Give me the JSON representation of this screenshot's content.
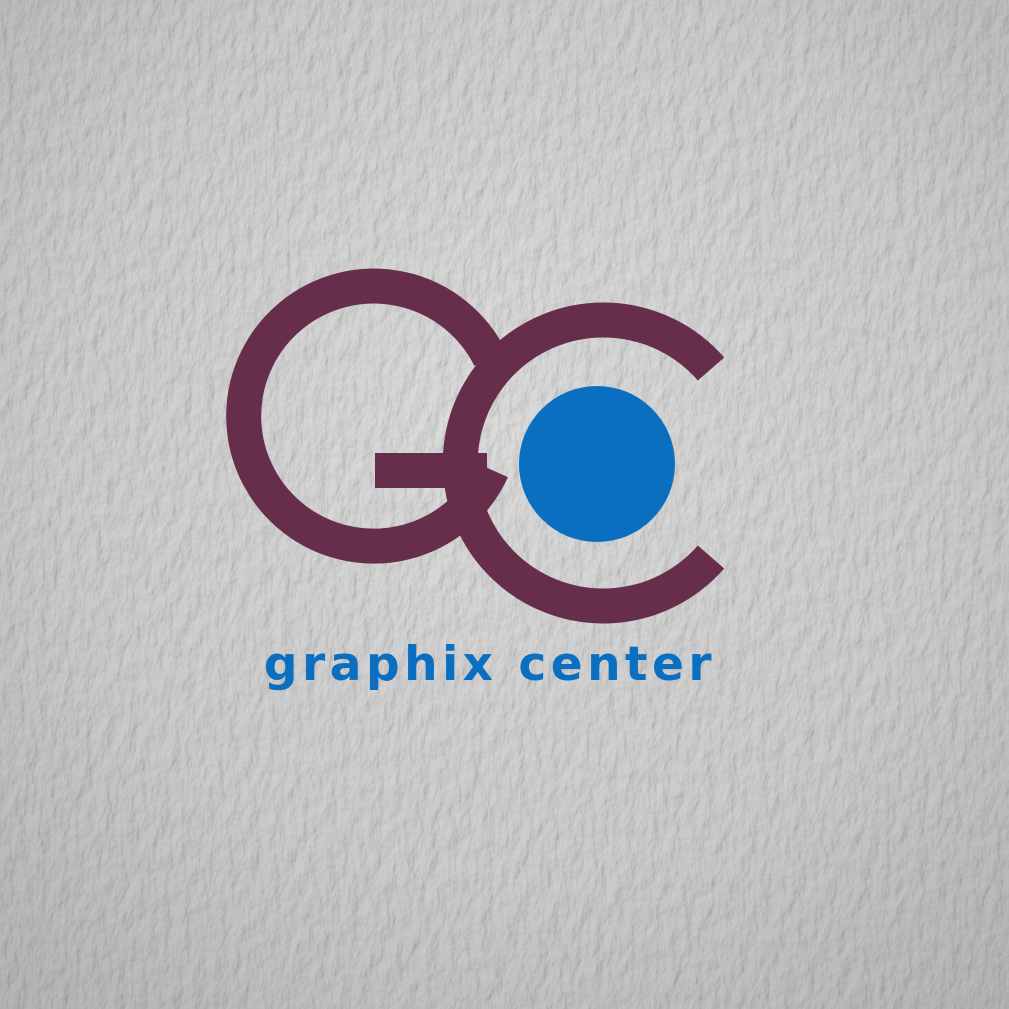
{
  "logo": {
    "monogram": "GC",
    "wordmark": "graphix center"
  },
  "colors": {
    "monogram": "#662e4b",
    "accent": "#0a6fc0",
    "paper": "#cfcfcf"
  }
}
